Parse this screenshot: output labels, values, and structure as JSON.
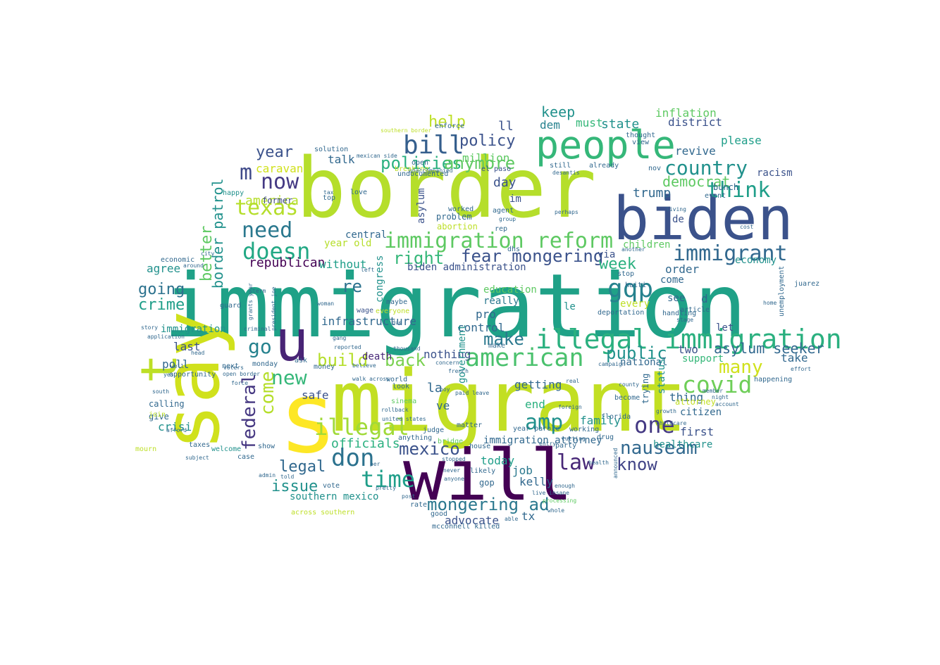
{
  "colors": {
    "background": "#ffffff",
    "palette": [
      "#440154",
      "#3b528b",
      "#21918c",
      "#5ec962",
      "#fde725",
      "#b5de2b",
      "#1fa187",
      "#31688e"
    ]
  },
  "words": [
    {
      "text": "immigration",
      "color": "#1fa187"
    },
    {
      "text": "border",
      "color": "#b5de2b"
    },
    {
      "text": "migrant",
      "color": "#c2df23"
    },
    {
      "text": "biden",
      "color": "#3b528b"
    },
    {
      "text": "people",
      "color": "#35b779"
    },
    {
      "text": "will",
      "color": "#440154"
    },
    {
      "text": "s",
      "color": "#fde725"
    },
    {
      "text": "say",
      "color": "#d0e11c"
    },
    {
      "text": "u",
      "color": "#482475"
    },
    {
      "text": "t",
      "color": "#bddf26"
    },
    {
      "text": "illegal immigration",
      "color": "#2ab07f"
    },
    {
      "text": "immigration reform",
      "color": "#5ec962"
    },
    {
      "text": "immigrant",
      "color": "#31688e"
    },
    {
      "text": "american",
      "color": "#4ac16d"
    },
    {
      "text": "bill",
      "color": "#355f8d"
    },
    {
      "text": "country",
      "color": "#21918c"
    },
    {
      "text": "think",
      "color": "#1f9e89"
    },
    {
      "text": "gqp",
      "color": "#26828e"
    },
    {
      "text": "covid",
      "color": "#6ece58"
    },
    {
      "text": "doesn",
      "color": "#22a884"
    },
    {
      "text": "texas",
      "color": "#b5de2b"
    },
    {
      "text": "need",
      "color": "#2a788e"
    },
    {
      "text": "now",
      "color": "#443983"
    },
    {
      "text": "m",
      "color": "#3e4989"
    },
    {
      "text": "policies",
      "color": "#2ab07f"
    },
    {
      "text": "anymore",
      "color": "#5ec962"
    },
    {
      "text": "policy",
      "color": "#3b528b"
    },
    {
      "text": "help",
      "color": "#bddf26"
    },
    {
      "text": "million",
      "color": "#5ec962"
    },
    {
      "text": "fear mongering",
      "color": "#3b528b"
    },
    {
      "text": "right",
      "color": "#35b779"
    },
    {
      "text": "time",
      "color": "#1f9e89"
    },
    {
      "text": "don",
      "color": "#2c728e"
    },
    {
      "text": "law",
      "color": "#482878"
    },
    {
      "text": "amp",
      "color": "#21918c"
    },
    {
      "text": "one",
      "color": "#443983"
    },
    {
      "text": "nauseam",
      "color": "#31688e"
    },
    {
      "text": "know",
      "color": "#414487"
    },
    {
      "text": "mexico",
      "color": "#3b528b"
    },
    {
      "text": "legal",
      "color": "#31688e"
    },
    {
      "text": "issue",
      "color": "#21918c"
    },
    {
      "text": "illegal",
      "color": "#a0da39"
    },
    {
      "text": "mongering ad",
      "color": "#2a788e"
    },
    {
      "text": "federal",
      "color": "#453781"
    },
    {
      "text": "come",
      "color": "#b5de2b"
    },
    {
      "text": "new",
      "color": "#35b779"
    },
    {
      "text": "go",
      "color": "#26828e"
    },
    {
      "text": "back",
      "color": "#7ad151"
    },
    {
      "text": "build",
      "color": "#b5de2b"
    },
    {
      "text": "make",
      "color": "#2a788e"
    },
    {
      "text": "public",
      "color": "#21918c"
    },
    {
      "text": "many",
      "color": "#d0e11c"
    },
    {
      "text": "asylum seeker",
      "color": "#31688e"
    },
    {
      "text": "going",
      "color": "#2c728e"
    },
    {
      "text": "crime",
      "color": "#1f9e89"
    },
    {
      "text": "year",
      "color": "#3b528b"
    },
    {
      "text": "week",
      "color": "#2ab07f"
    },
    {
      "text": "keep",
      "color": "#21918c"
    },
    {
      "text": "democrat",
      "color": "#5ec962"
    },
    {
      "text": "trump",
      "color": "#31688e"
    },
    {
      "text": "state",
      "color": "#21918c"
    },
    {
      "text": "inflation",
      "color": "#5ec962"
    },
    {
      "text": "district",
      "color": "#3b528b"
    },
    {
      "text": "please",
      "color": "#1f9e89"
    },
    {
      "text": "revive",
      "color": "#31688e"
    },
    {
      "text": "republican",
      "color": "#440154"
    },
    {
      "text": "better",
      "color": "#5ec962"
    },
    {
      "text": "border patrol",
      "color": "#21918c"
    },
    {
      "text": "america",
      "color": "#b5de2b"
    },
    {
      "text": "caravan",
      "color": "#d0e11c"
    },
    {
      "text": "day",
      "color": "#3b528b"
    },
    {
      "text": "talk",
      "color": "#31688e"
    },
    {
      "text": "dem",
      "color": "#26828e"
    },
    {
      "text": "must",
      "color": "#35b779"
    },
    {
      "text": "ll",
      "color": "#3b528b"
    },
    {
      "text": "re",
      "color": "#2c728e"
    },
    {
      "text": "agree",
      "color": "#21918c"
    },
    {
      "text": "last",
      "color": "#3b528b"
    },
    {
      "text": "poll",
      "color": "#31688e"
    },
    {
      "text": "crisi",
      "color": "#21918c"
    },
    {
      "text": "infrastructure",
      "color": "#31688e"
    },
    {
      "text": "biden administration",
      "color": "#3b528b"
    },
    {
      "text": "without",
      "color": "#1f9e89"
    },
    {
      "text": "control",
      "color": "#31688e"
    },
    {
      "text": "children",
      "color": "#5ec962"
    },
    {
      "text": "order",
      "color": "#31688e"
    },
    {
      "text": "economy",
      "color": "#21918c"
    },
    {
      "text": "support",
      "color": "#35b779"
    },
    {
      "text": "two",
      "color": "#3b528b"
    },
    {
      "text": "take",
      "color": "#31688e"
    },
    {
      "text": "first",
      "color": "#3b528b"
    },
    {
      "text": "thing",
      "color": "#31688e"
    },
    {
      "text": "healthcare",
      "color": "#21918c"
    },
    {
      "text": "family",
      "color": "#21918c"
    },
    {
      "text": "getting",
      "color": "#31688e"
    },
    {
      "text": "end",
      "color": "#2ab07f"
    },
    {
      "text": "job",
      "color": "#2a788e"
    },
    {
      "text": "today",
      "color": "#1f9e89"
    },
    {
      "text": "kelly",
      "color": "#31688e"
    },
    {
      "text": "advocate",
      "color": "#3b528b"
    },
    {
      "text": "immigration attorney",
      "color": "#31688e"
    },
    {
      "text": "officials",
      "color": "#2ab07f"
    },
    {
      "text": "southern mexico",
      "color": "#21918c"
    },
    {
      "text": "la",
      "color": "#31688e"
    },
    {
      "text": "safe",
      "color": "#3b528b"
    },
    {
      "text": "ve",
      "color": "#31688e"
    },
    {
      "text": "nothing",
      "color": "#3b528b"
    },
    {
      "text": "death",
      "color": "#482878"
    },
    {
      "text": "education",
      "color": "#5ec962"
    },
    {
      "text": "really",
      "color": "#2a788e"
    },
    {
      "text": "pro",
      "color": "#31688e"
    },
    {
      "text": "national",
      "color": "#31688e"
    },
    {
      "text": "attorney",
      "color": "#c2df23"
    },
    {
      "text": "citizen",
      "color": "#31688e"
    },
    {
      "text": "via",
      "color": "#3b528b"
    },
    {
      "text": "le",
      "color": "#21918c"
    },
    {
      "text": "d",
      "color": "#31688e"
    },
    {
      "text": "see",
      "color": "#31688e"
    },
    {
      "text": "every",
      "color": "#bddf26"
    },
    {
      "text": "former",
      "color": "#3e4989"
    },
    {
      "text": "central",
      "color": "#31688e"
    },
    {
      "text": "year old",
      "color": "#b5de2b"
    },
    {
      "text": "abortion",
      "color": "#bddf26"
    },
    {
      "text": "problem",
      "color": "#31688e"
    },
    {
      "text": "asylum",
      "color": "#3b528b"
    },
    {
      "text": "undocumented",
      "color": "#31688e"
    },
    {
      "text": "im",
      "color": "#3b528b"
    },
    {
      "text": "tx",
      "color": "#31688e"
    },
    {
      "text": "gop",
      "color": "#31688e"
    },
    {
      "text": "de",
      "color": "#3b528b"
    },
    {
      "text": "el paso",
      "color": "#3b528b"
    },
    {
      "text": "deportation",
      "color": "#31688e"
    },
    {
      "text": "come",
      "color": "#31688e"
    },
    {
      "text": "immigration",
      "color": "#21918c"
    },
    {
      "text": "happy",
      "color": "#21918c"
    },
    {
      "text": "judge",
      "color": "#31688e"
    },
    {
      "text": "still",
      "color": "#31688e"
    },
    {
      "text": "maybe",
      "color": "#31688e"
    },
    {
      "text": "congress",
      "color": "#21918c"
    },
    {
      "text": "government",
      "color": "#21918c"
    },
    {
      "text": "everyone",
      "color": "#bddf26"
    },
    {
      "text": "wage",
      "color": "#3b528b"
    },
    {
      "text": "guard",
      "color": "#31688e"
    },
    {
      "text": "economic",
      "color": "#31688e"
    },
    {
      "text": "opportunity",
      "color": "#31688e"
    },
    {
      "text": "calling",
      "color": "#31688e"
    },
    {
      "text": "give",
      "color": "#31688e"
    },
    {
      "text": "join",
      "color": "#bddf26"
    },
    {
      "text": "welcome",
      "color": "#21918c"
    },
    {
      "text": "taxes",
      "color": "#31688e"
    },
    {
      "text": "show",
      "color": "#31688e"
    },
    {
      "text": "case",
      "color": "#31688e"
    },
    {
      "text": "next",
      "color": "#31688e"
    },
    {
      "text": "monday",
      "color": "#31688e"
    },
    {
      "text": "ask",
      "color": "#31688e"
    },
    {
      "text": "money",
      "color": "#31688e"
    },
    {
      "text": "world",
      "color": "#31688e"
    },
    {
      "text": "look",
      "color": "#31688e"
    },
    {
      "text": "bridge",
      "color": "#5ec962"
    },
    {
      "text": "anything",
      "color": "#31688e"
    },
    {
      "text": "matter",
      "color": "#31688e"
    },
    {
      "text": "house",
      "color": "#31688e"
    },
    {
      "text": "likely",
      "color": "#31688e"
    },
    {
      "text": "rate",
      "color": "#31688e"
    },
    {
      "text": "good",
      "color": "#31688e"
    },
    {
      "text": "mcconnell killed",
      "color": "#31688e"
    },
    {
      "text": "admin",
      "color": "#31688e"
    },
    {
      "text": "told",
      "color": "#31688e"
    },
    {
      "text": "vote",
      "color": "#31688e"
    },
    {
      "text": "enough",
      "color": "#31688e"
    },
    {
      "text": "working",
      "color": "#31688e"
    },
    {
      "text": "party",
      "color": "#31688e"
    },
    {
      "text": "drug",
      "color": "#31688e"
    },
    {
      "text": "florida",
      "color": "#31688e"
    },
    {
      "text": "become",
      "color": "#31688e"
    },
    {
      "text": "trying",
      "color": "#31688e"
    },
    {
      "text": "status",
      "color": "#21918c"
    },
    {
      "text": "make",
      "color": "#31688e"
    },
    {
      "text": "let",
      "color": "#3b528b"
    },
    {
      "text": "racism",
      "color": "#3b528b"
    },
    {
      "text": "nov",
      "color": "#31688e"
    },
    {
      "text": "view",
      "color": "#31688e"
    },
    {
      "text": "thought",
      "color": "#31688e"
    },
    {
      "text": "open",
      "color": "#31688e"
    },
    {
      "text": "breaking",
      "color": "#bddf26"
    },
    {
      "text": "unaccompanied",
      "color": "#31688e"
    },
    {
      "text": "solution",
      "color": "#31688e"
    },
    {
      "text": "mexican side",
      "color": "#31688e"
    },
    {
      "text": "southern border",
      "color": "#bddf26"
    },
    {
      "text": "enforce",
      "color": "#31688e"
    },
    {
      "text": "love",
      "color": "#31688e"
    },
    {
      "text": "tax",
      "color": "#31688e"
    },
    {
      "text": "top",
      "color": "#31688e"
    },
    {
      "text": "worked",
      "color": "#31688e"
    },
    {
      "text": "agent",
      "color": "#31688e"
    },
    {
      "text": "rep",
      "color": "#31688e"
    },
    {
      "text": "group",
      "color": "#31688e"
    },
    {
      "text": "dhs",
      "color": "#31688e"
    },
    {
      "text": "desantis",
      "color": "#31688e"
    },
    {
      "text": "already",
      "color": "#31688e"
    },
    {
      "text": "perhaps",
      "color": "#31688e"
    },
    {
      "text": "another",
      "color": "#31688e"
    },
    {
      "text": "stop",
      "color": "#31688e"
    },
    {
      "text": "haiti",
      "color": "#31688e"
    },
    {
      "text": "article",
      "color": "#31688e"
    },
    {
      "text": "handling",
      "color": "#31688e"
    },
    {
      "text": "stage",
      "color": "#31688e"
    },
    {
      "text": "bunch",
      "color": "#31688e"
    },
    {
      "text": "event",
      "color": "#31688e"
    },
    {
      "text": "living",
      "color": "#31688e"
    },
    {
      "text": "cost",
      "color": "#31688e"
    },
    {
      "text": "unemployment",
      "color": "#31688e"
    },
    {
      "text": "juarez",
      "color": "#31688e"
    },
    {
      "text": "effort",
      "color": "#31688e"
    },
    {
      "text": "happening",
      "color": "#31688e"
    },
    {
      "text": "account",
      "color": "#31688e"
    },
    {
      "text": "member",
      "color": "#31688e"
    },
    {
      "text": "night",
      "color": "#31688e"
    },
    {
      "text": "home",
      "color": "#31688e"
    },
    {
      "text": "growth",
      "color": "#31688e"
    },
    {
      "text": "childcare",
      "color": "#31688e"
    },
    {
      "text": "county",
      "color": "#31688e"
    },
    {
      "text": "campaign",
      "color": "#31688e"
    },
    {
      "text": "foreign",
      "color": "#31688e"
    },
    {
      "text": "announced",
      "color": "#31688e"
    },
    {
      "text": "health",
      "color": "#31688e"
    },
    {
      "text": "live insane",
      "color": "#31688e"
    },
    {
      "text": "processing",
      "color": "#5ec962"
    },
    {
      "text": "whole",
      "color": "#31688e"
    },
    {
      "text": "cutting",
      "color": "#31688e"
    },
    {
      "text": "year parole",
      "color": "#31688e"
    },
    {
      "text": "real",
      "color": "#31688e"
    },
    {
      "text": "entry",
      "color": "#31688e"
    },
    {
      "text": "able",
      "color": "#31688e"
    },
    {
      "text": "paid leave",
      "color": "#31688e"
    },
    {
      "text": "french",
      "color": "#31688e"
    },
    {
      "text": "concern",
      "color": "#31688e"
    },
    {
      "text": "thousand",
      "color": "#31688e"
    },
    {
      "text": "believe",
      "color": "#31688e"
    },
    {
      "text": "reported",
      "color": "#31688e"
    },
    {
      "text": "walk across",
      "color": "#31688e"
    },
    {
      "text": "across southern",
      "color": "#bddf26"
    },
    {
      "text": "sinema",
      "color": "#5ec962"
    },
    {
      "text": "rollback",
      "color": "#31688e"
    },
    {
      "text": "united states",
      "color": "#31688e"
    },
    {
      "text": "boy",
      "color": "#31688e"
    },
    {
      "text": "per",
      "color": "#31688e"
    },
    {
      "text": "pretty",
      "color": "#31688e"
    },
    {
      "text": "post",
      "color": "#31688e"
    },
    {
      "text": "anyone",
      "color": "#31688e"
    },
    {
      "text": "never",
      "color": "#31688e"
    },
    {
      "text": "stopped",
      "color": "#31688e"
    },
    {
      "text": "around",
      "color": "#31688e"
    },
    {
      "text": "south",
      "color": "#31688e"
    },
    {
      "text": "afford",
      "color": "#31688e"
    },
    {
      "text": "subject",
      "color": "#31688e"
    },
    {
      "text": "mourn",
      "color": "#bddf26"
    },
    {
      "text": "application",
      "color": "#31688e"
    },
    {
      "text": "story",
      "color": "#31688e"
    },
    {
      "text": "term",
      "color": "#31688e"
    },
    {
      "text": "yes",
      "color": "#31688e"
    },
    {
      "text": "well",
      "color": "#31688e"
    },
    {
      "text": "head",
      "color": "#31688e"
    },
    {
      "text": "open border",
      "color": "#31688e"
    },
    {
      "text": "force",
      "color": "#31688e"
    },
    {
      "text": "voters",
      "color": "#31688e"
    },
    {
      "text": "criminal",
      "color": "#31688e"
    },
    {
      "text": "city",
      "color": "#31688e"
    },
    {
      "text": "left",
      "color": "#31688e"
    },
    {
      "text": "woman",
      "color": "#31688e"
    },
    {
      "text": "gang",
      "color": "#31688e"
    },
    {
      "text": "due",
      "color": "#31688e"
    },
    {
      "text": "grants year",
      "color": "#31688e"
    },
    {
      "text": "president joe",
      "color": "#31688e"
    }
  ]
}
